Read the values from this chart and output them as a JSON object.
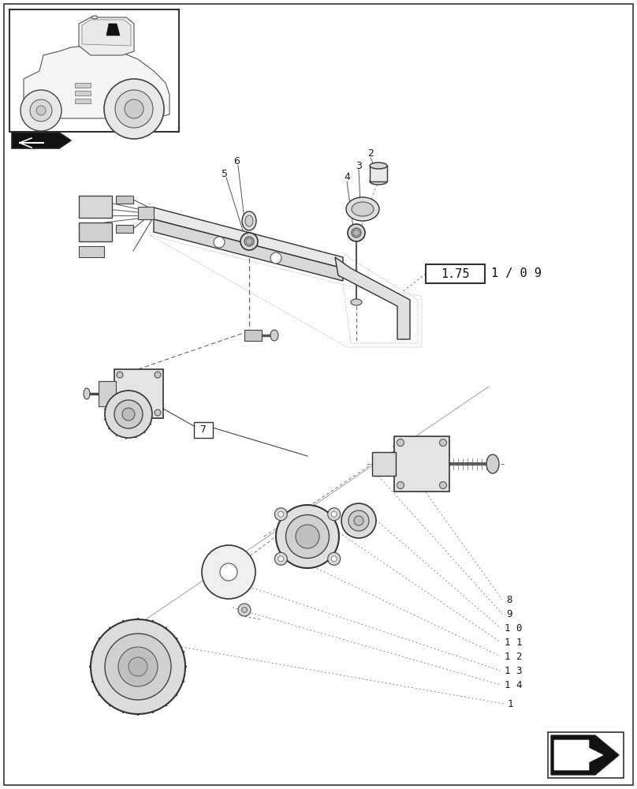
{
  "background_color": "#ffffff",
  "page_width": 8.08,
  "page_height": 10.0,
  "dpi": 100,
  "box_label": "1.75",
  "box_suffix": "1 / 0 9",
  "line_color": "#2a2a2a",
  "text_color": "#1a1a1a"
}
